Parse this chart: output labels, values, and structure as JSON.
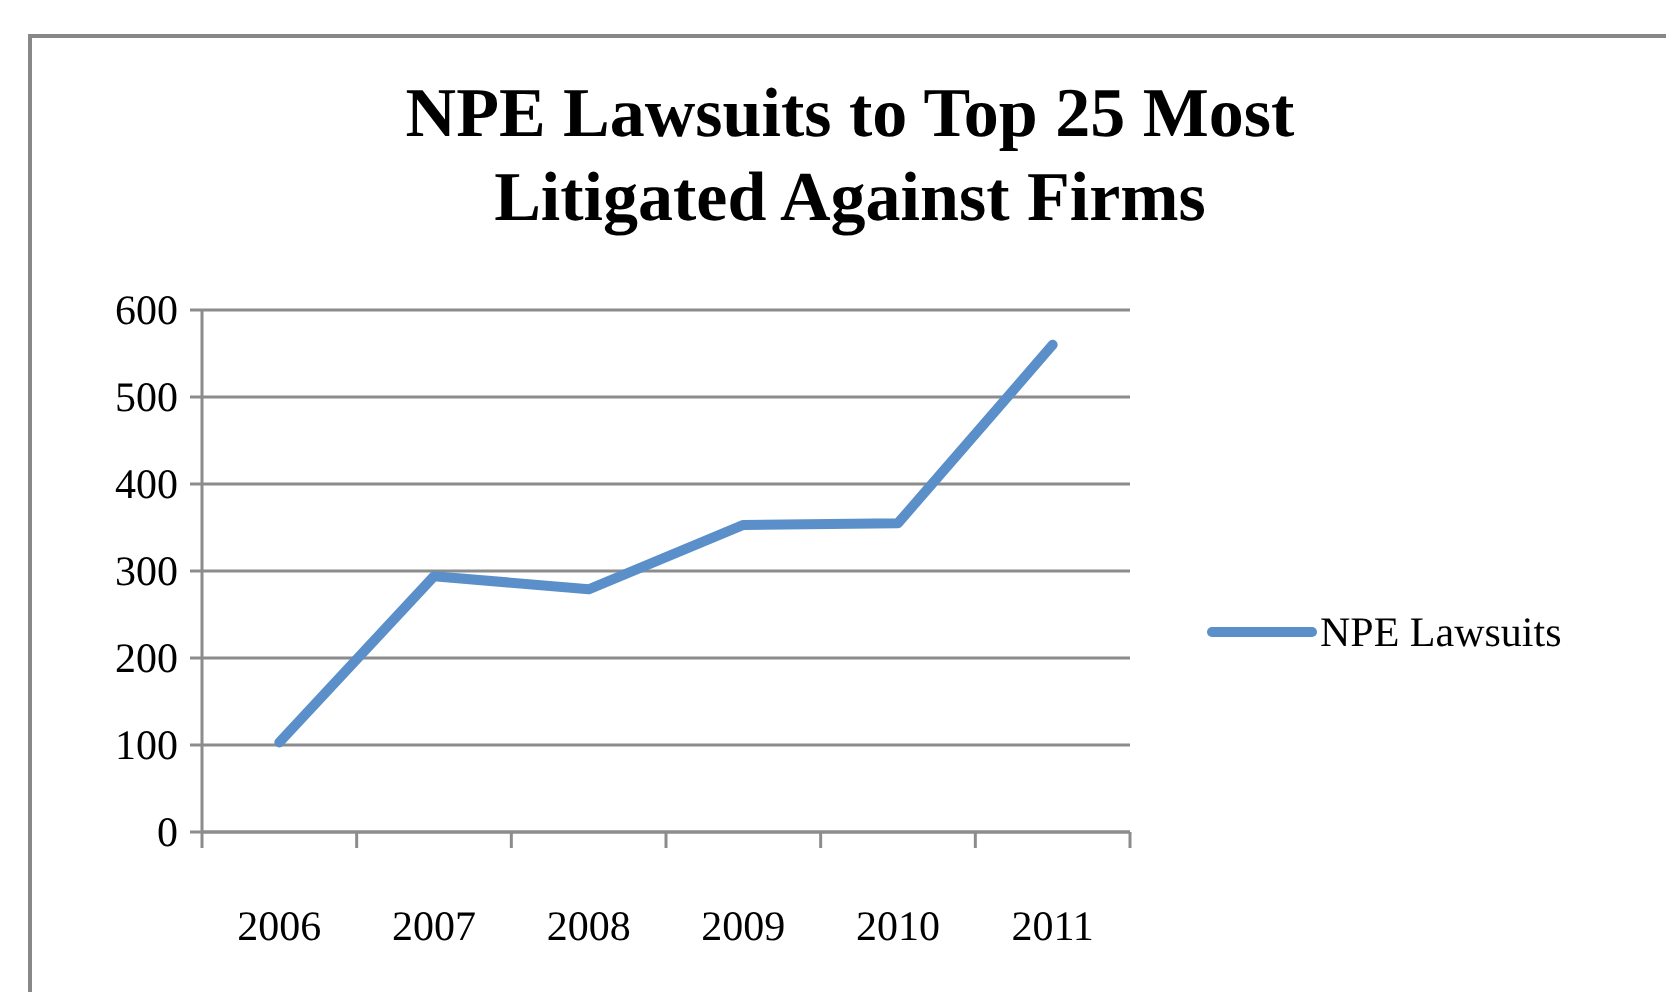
{
  "chart_data": {
    "type": "line",
    "title": "NPE Lawsuits to Top 25 Most Litigated Against Firms",
    "categories": [
      "2006",
      "2007",
      "2008",
      "2009",
      "2010",
      "2011"
    ],
    "series": [
      {
        "name": "NPE Lawsuits",
        "color": "#5b8fc9",
        "values": [
          103,
          294,
          279,
          353,
          355,
          560
        ]
      }
    ],
    "ylim": [
      0,
      600
    ],
    "yticks": [
      0,
      100,
      200,
      300,
      400,
      500,
      600
    ],
    "grid": "y",
    "legend": "right",
    "marker": "none"
  }
}
